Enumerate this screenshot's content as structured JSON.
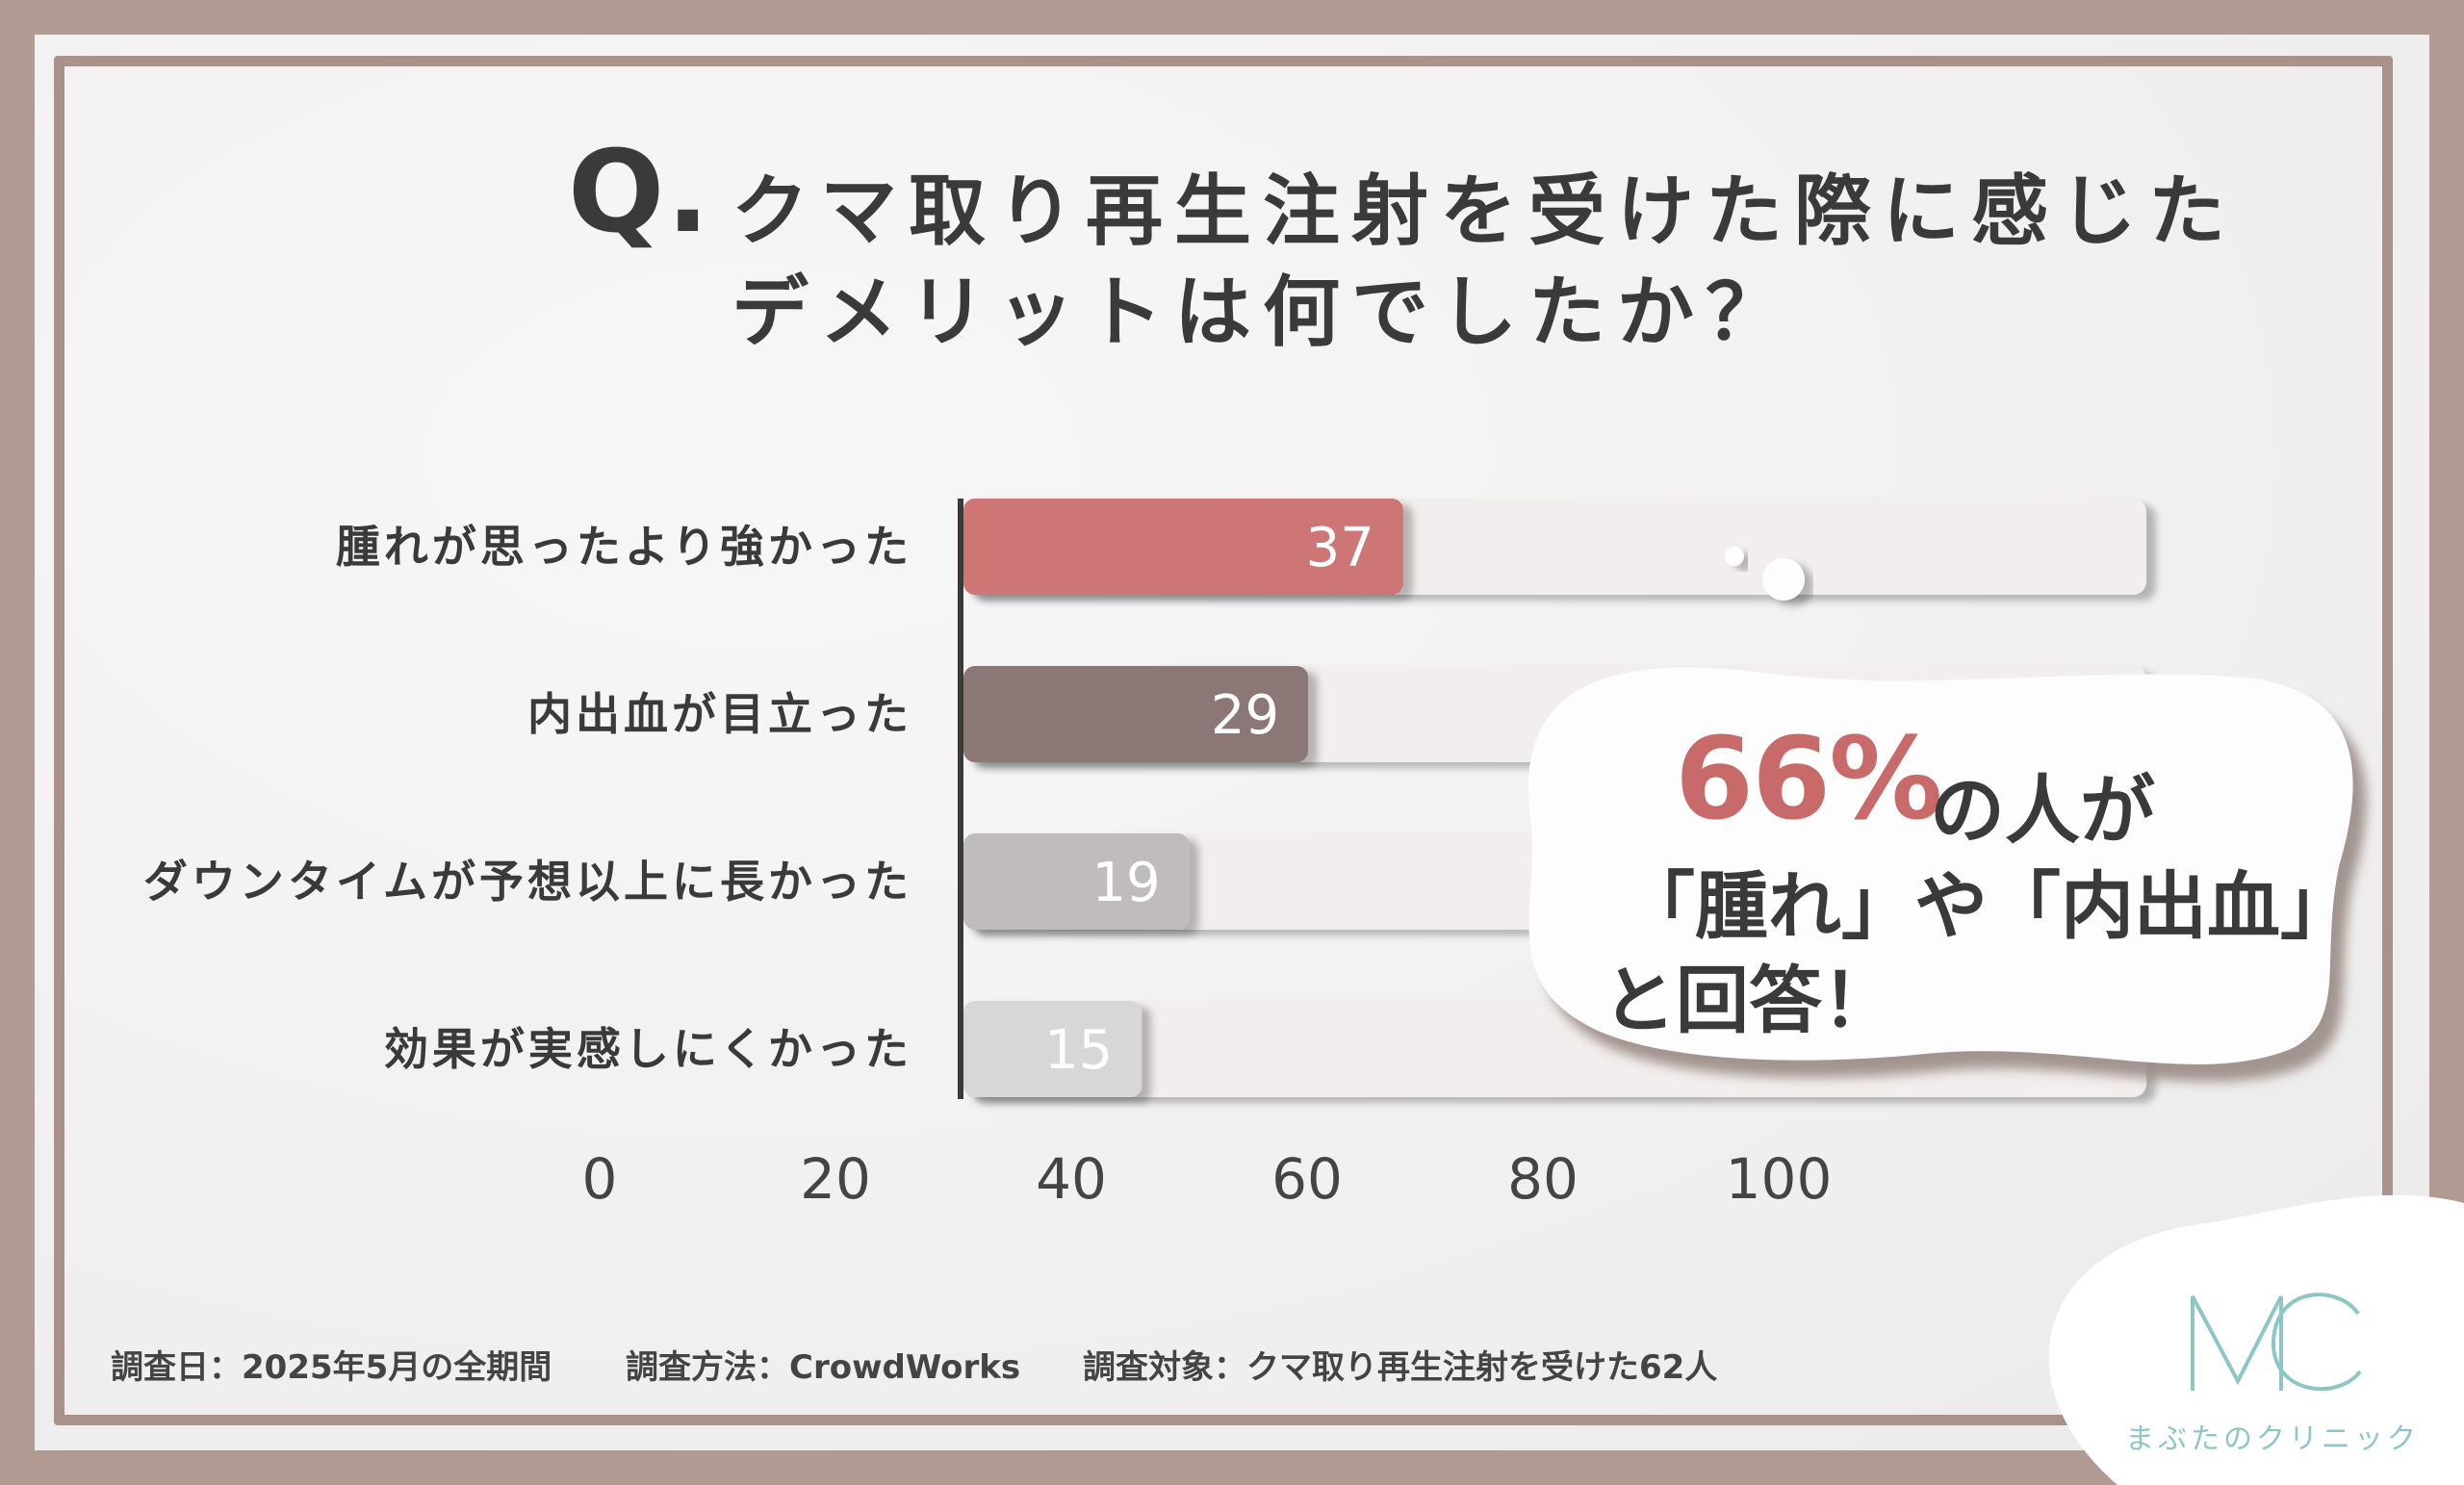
{
  "title": {
    "prefix": "Q.",
    "line1": "クマ取り再生注射を受けた際に感じた",
    "line2": "デメリットは何でしたか？"
  },
  "chart_data": {
    "type": "bar",
    "orientation": "horizontal",
    "categories": [
      "腫れが思ったより強かった",
      "内出血が目立った",
      "ダウンタイムが予想以上に長かった",
      "効果が実感しにくかった"
    ],
    "values": [
      37,
      29,
      19,
      15
    ],
    "value_labels": [
      "37",
      "29",
      "19",
      "15"
    ],
    "bar_colors": [
      "#cd7675",
      "#8b7876",
      "#bfbcbb",
      "#d8d6d6"
    ],
    "xlim": [
      0,
      100
    ],
    "x_ticks": [
      "0",
      "20",
      "40",
      "60",
      "80",
      "100"
    ]
  },
  "callout": {
    "percent": "66%",
    "suffix": "の人が",
    "line2": "「腫れ」や「内出血」",
    "line3": "と回答！"
  },
  "footer": {
    "date": "調査日：2025年5月の全期間",
    "method": "調査方法：CrowdWorks",
    "target": "調査対象：クマ取り再生注射を受けた62人"
  },
  "logo": {
    "mark": "MC",
    "name": "まぶたのクリニック",
    "color": "#8cc7c5"
  }
}
